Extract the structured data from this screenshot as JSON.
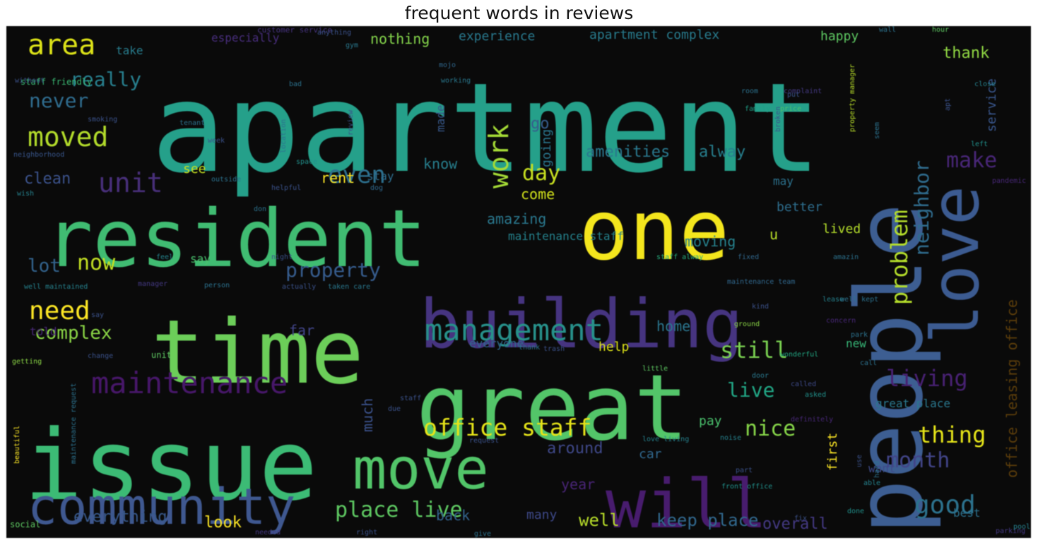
{
  "figure": {
    "title": "frequent words in reviews"
  },
  "wordcloud": {
    "words": [
      {
        "text": "apartment",
        "color": "#25a08a"
      },
      {
        "text": "resident",
        "color": "#40bc72"
      },
      {
        "text": "time",
        "color": "#6cce59"
      },
      {
        "text": "issue",
        "color": "#3cbb75"
      },
      {
        "text": "great",
        "color": "#53c569"
      },
      {
        "text": "people",
        "color": "#3d5e92"
      },
      {
        "text": "one",
        "color": "#f4e61d"
      },
      {
        "text": "building",
        "color": "#463480"
      },
      {
        "text": "will",
        "color": "#481c6e"
      },
      {
        "text": "love",
        "color": "#3c5b91"
      },
      {
        "text": "community",
        "color": "#3f5890"
      },
      {
        "text": "move",
        "color": "#52c569"
      },
      {
        "text": "management",
        "color": "#27918b"
      },
      {
        "text": "maintenance",
        "color": "#471769"
      },
      {
        "text": "office staff",
        "color": "#e6e419"
      },
      {
        "text": "unit",
        "color": "#482f7a"
      },
      {
        "text": "area",
        "color": "#dde318"
      },
      {
        "text": "moved",
        "color": "#b3dc2b"
      },
      {
        "text": "really",
        "color": "#277f8e"
      },
      {
        "text": "never",
        "color": "#2f6c8e"
      },
      {
        "text": "clean",
        "color": "#3b528b"
      },
      {
        "text": "need",
        "color": "#fde725"
      },
      {
        "text": "complex",
        "color": "#8bd646"
      },
      {
        "text": "lot",
        "color": "#33638d"
      },
      {
        "text": "now",
        "color": "#c2df23"
      },
      {
        "text": "property",
        "color": "#365c8d"
      },
      {
        "text": "even",
        "color": "#2d708e"
      },
      {
        "text": "work",
        "color": "#a5db36"
      },
      {
        "text": "day",
        "color": "#c8e020"
      },
      {
        "text": "problem",
        "color": "#b5de2b"
      },
      {
        "text": "neighbor",
        "color": "#2f6c8e"
      },
      {
        "text": "make",
        "color": "#482677"
      },
      {
        "text": "still",
        "color": "#7ad151"
      },
      {
        "text": "living",
        "color": "#482173"
      },
      {
        "text": "live",
        "color": "#21a685"
      },
      {
        "text": "nice",
        "color": "#86d549"
      },
      {
        "text": "thing",
        "color": "#e5e419"
      },
      {
        "text": "month",
        "color": "#414487"
      },
      {
        "text": "good",
        "color": "#2c728e"
      },
      {
        "text": "place live",
        "color": "#5ec962"
      },
      {
        "text": "everything",
        "color": "#38598c"
      },
      {
        "text": "look",
        "color": "#fde725"
      },
      {
        "text": "well",
        "color": "#b8de29"
      },
      {
        "text": "keep place",
        "color": "#31688e"
      },
      {
        "text": "overall",
        "color": "#443983"
      },
      {
        "text": "office leasing office",
        "color": "#5b3d0b"
      },
      {
        "text": "amenities",
        "color": "#2a788e"
      },
      {
        "text": "alway",
        "color": "#277f8e"
      },
      {
        "text": "nothing",
        "color": "#84d44b"
      },
      {
        "text": "experience",
        "color": "#29798e"
      },
      {
        "text": "apartment complex",
        "color": "#287c8e"
      },
      {
        "text": "happy",
        "color": "#5ec962"
      },
      {
        "text": "thank",
        "color": "#90d743"
      },
      {
        "text": "especially",
        "color": "#472d7b"
      },
      {
        "text": "take",
        "color": "#287d8e"
      },
      {
        "text": "going",
        "color": "#2a768e"
      },
      {
        "text": "made",
        "color": "#38598c"
      },
      {
        "text": "go",
        "color": "#365d8d"
      },
      {
        "text": "service",
        "color": "#39568c"
      },
      {
        "text": "know",
        "color": "#277f8e"
      },
      {
        "text": "see",
        "color": "#c7e020"
      },
      {
        "text": "rent",
        "color": "#fde725"
      },
      {
        "text": "come",
        "color": "#d2e21b"
      },
      {
        "text": "amazing",
        "color": "#2a788e"
      },
      {
        "text": "maintenance staff",
        "color": "#25838e"
      },
      {
        "text": "moving",
        "color": "#26828e"
      },
      {
        "text": "better",
        "color": "#2e6e8e"
      },
      {
        "text": "lived",
        "color": "#b5de2b"
      },
      {
        "text": "home",
        "color": "#2b758e"
      },
      {
        "text": "far",
        "color": "#414487"
      },
      {
        "text": "say",
        "color": "#4ac16d"
      },
      {
        "text": "help",
        "color": "#dde318"
      },
      {
        "text": "everyone",
        "color": "#31688e"
      },
      {
        "text": "told",
        "color": "#482878"
      },
      {
        "text": "much",
        "color": "#3b528b"
      },
      {
        "text": "pay",
        "color": "#4ac16d"
      },
      {
        "text": "around",
        "color": "#3f4889"
      },
      {
        "text": "car",
        "color": "#31688e"
      },
      {
        "text": "year",
        "color": "#482475"
      },
      {
        "text": "back",
        "color": "#33638d"
      },
      {
        "text": "many",
        "color": "#3e4989"
      },
      {
        "text": "great place",
        "color": "#2a788e"
      },
      {
        "text": "new",
        "color": "#37b878"
      },
      {
        "text": "u",
        "color": "#b8de29"
      },
      {
        "text": "may",
        "color": "#2c728e"
      },
      {
        "text": "first",
        "color": "#fde725"
      },
      {
        "text": "want",
        "color": "#3e4a89"
      },
      {
        "text": "best",
        "color": "#2c718e"
      },
      {
        "text": "stay",
        "color": "#2e6d8e"
      },
      {
        "text": "staff friendly",
        "color": "#3bbb75"
      },
      {
        "text": "customer service",
        "color": "#46337f"
      },
      {
        "text": "anything",
        "color": "#3b528b"
      },
      {
        "text": "wall",
        "color": "#2c728e"
      },
      {
        "text": "hour",
        "color": "#5ec962"
      },
      {
        "text": "without",
        "color": "#3b528b"
      },
      {
        "text": "bad",
        "color": "#2c728e"
      },
      {
        "text": "complaint",
        "color": "#443983"
      },
      {
        "text": "close",
        "color": "#26828e"
      },
      {
        "text": "neighborhood",
        "color": "#39568c"
      },
      {
        "text": "family",
        "color": "#1fa188"
      },
      {
        "text": "price",
        "color": "#4ac16d"
      },
      {
        "text": "fixed",
        "color": "#31688e"
      },
      {
        "text": "helpful",
        "color": "#3b528b"
      },
      {
        "text": "outside",
        "color": "#2c728e"
      },
      {
        "text": "space",
        "color": "#21918c"
      },
      {
        "text": "dog",
        "color": "#30698e"
      },
      {
        "text": "feel",
        "color": "#25858e"
      },
      {
        "text": "night",
        "color": "#3b528b"
      },
      {
        "text": "person",
        "color": "#2c728e"
      },
      {
        "text": "actually",
        "color": "#3b528b"
      },
      {
        "text": "manager",
        "color": "#443983"
      },
      {
        "text": "taken care",
        "color": "#2a788e"
      },
      {
        "text": "staff alway",
        "color": "#29af7f"
      },
      {
        "text": "maintenance team",
        "color": "#31688e"
      },
      {
        "text": "well maintained",
        "color": "#26828e"
      },
      {
        "text": "getting",
        "color": "#8bd646"
      },
      {
        "text": "change",
        "color": "#3b528b"
      },
      {
        "text": "beautiful",
        "color": "#fde725"
      },
      {
        "text": "maintenance request",
        "color": "#2c728e"
      },
      {
        "text": "ground",
        "color": "#8bd646"
      },
      {
        "text": "wonderful",
        "color": "#22a884"
      },
      {
        "text": "called",
        "color": "#3e4a89"
      },
      {
        "text": "asked",
        "color": "#21918c"
      },
      {
        "text": "door",
        "color": "#2a788e"
      },
      {
        "text": "park",
        "color": "#2c728e"
      },
      {
        "text": "parking",
        "color": "#443983"
      },
      {
        "text": "pool",
        "color": "#26828e"
      },
      {
        "text": "pandemic",
        "color": "#482878"
      },
      {
        "text": "thank",
        "color": "#2c728e"
      },
      {
        "text": "definitely",
        "color": "#482878"
      },
      {
        "text": "love living",
        "color": "#26828e"
      },
      {
        "text": "request",
        "color": "#3b528b"
      },
      {
        "text": "noise",
        "color": "#26828e"
      },
      {
        "text": "front office",
        "color": "#21918c"
      },
      {
        "text": "call",
        "color": "#2c728e"
      },
      {
        "text": "able",
        "color": "#26828e"
      },
      {
        "text": "done",
        "color": "#21918c"
      },
      {
        "text": "fix",
        "color": "#3b528b"
      },
      {
        "text": "give",
        "color": "#2c728e"
      },
      {
        "text": "right",
        "color": "#3b528b"
      },
      {
        "text": "needed",
        "color": "#443983"
      },
      {
        "text": "social",
        "color": "#5ec962"
      },
      {
        "text": "due",
        "color": "#3b528b"
      },
      {
        "text": "staff",
        "color": "#3b528b"
      },
      {
        "text": "little",
        "color": "#5ec962"
      },
      {
        "text": "trash",
        "color": "#3b528b"
      },
      {
        "text": "mojo",
        "color": "#31688e"
      },
      {
        "text": "working",
        "color": "#2a788e"
      },
      {
        "text": "room",
        "color": "#2c728e"
      },
      {
        "text": "put",
        "color": "#3b528b"
      },
      {
        "text": "property manager",
        "color": "#b8de29"
      },
      {
        "text": "apt",
        "color": "#3b528b"
      },
      {
        "text": "left",
        "color": "#21918c"
      },
      {
        "text": "location",
        "color": "#2c728e"
      },
      {
        "text": "week",
        "color": "#3b528b"
      },
      {
        "text": "lease",
        "color": "#26828e"
      },
      {
        "text": "broken",
        "color": "#3b528b"
      },
      {
        "text": "concern",
        "color": "#482878"
      },
      {
        "text": "wish",
        "color": "#26828e"
      },
      {
        "text": "kind",
        "color": "#3b528b"
      },
      {
        "text": "tenant",
        "color": "#2c728e"
      },
      {
        "text": "gym",
        "color": "#2a788e"
      },
      {
        "text": "well kept",
        "color": "#2c728e"
      },
      {
        "text": "review",
        "color": "#3b528b"
      },
      {
        "text": "seem",
        "color": "#2c728e"
      },
      {
        "text": "use",
        "color": "#3b528b"
      },
      {
        "text": "hard",
        "color": "#2c728e"
      },
      {
        "text": "unit",
        "color": "#5ec962"
      },
      {
        "text": "smoking",
        "color": "#3b528b"
      },
      {
        "text": "don",
        "color": "#2c728e"
      },
      {
        "text": "part",
        "color": "#3b528b"
      },
      {
        "text": "amazin",
        "color": "#2c728e"
      },
      {
        "text": "say",
        "color": "#3b528b"
      }
    ]
  }
}
